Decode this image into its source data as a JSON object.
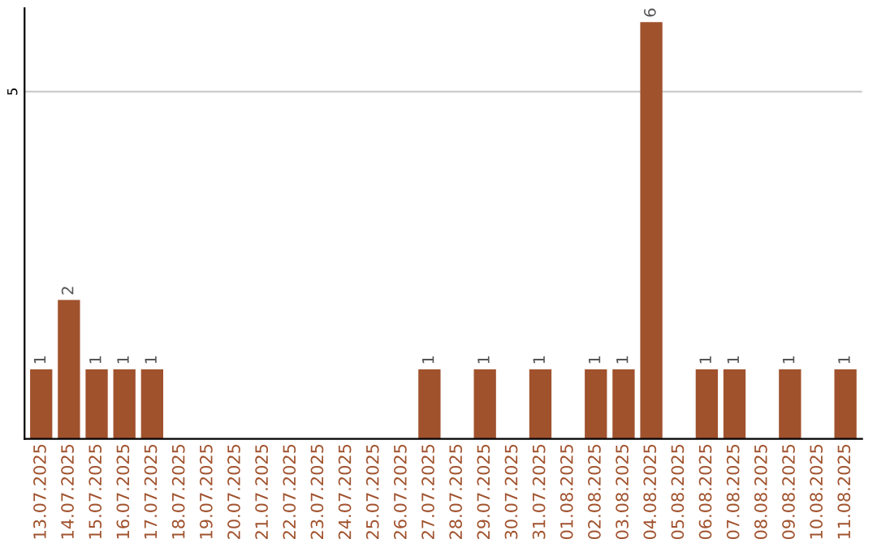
{
  "chart_data": {
    "type": "bar",
    "categories": [
      "13.07.2025",
      "14.07.2025",
      "15.07.2025",
      "16.07.2025",
      "17.07.2025",
      "18.07.2025",
      "19.07.2025",
      "20.07.2025",
      "21.07.2025",
      "22.07.2025",
      "23.07.2025",
      "24.07.2025",
      "25.07.2025",
      "26.07.2025",
      "27.07.2025",
      "28.07.2025",
      "29.07.2025",
      "30.07.2025",
      "31.07.2025",
      "01.08.2025",
      "02.08.2025",
      "03.08.2025",
      "04.08.2025",
      "05.08.2025",
      "06.08.2025",
      "07.08.2025",
      "08.08.2025",
      "09.08.2025",
      "10.08.2025",
      "11.08.2025"
    ],
    "values": [
      1,
      2,
      1,
      1,
      1,
      0,
      0,
      0,
      0,
      0,
      0,
      0,
      0,
      0,
      1,
      0,
      1,
      0,
      1,
      0,
      1,
      1,
      6,
      0,
      1,
      1,
      0,
      1,
      0,
      1
    ],
    "value_labels": [
      "1",
      "2",
      "1",
      "1",
      "1",
      null,
      null,
      null,
      null,
      null,
      null,
      null,
      null,
      null,
      "1",
      null,
      "1",
      null,
      "1",
      null,
      "1",
      "1",
      "6",
      null,
      "1",
      "1",
      null,
      "1",
      null,
      "1"
    ],
    "color": "#a0522d",
    "ylim": [
      0,
      6.2
    ],
    "yticks": [
      5
    ],
    "grid": "y"
  }
}
